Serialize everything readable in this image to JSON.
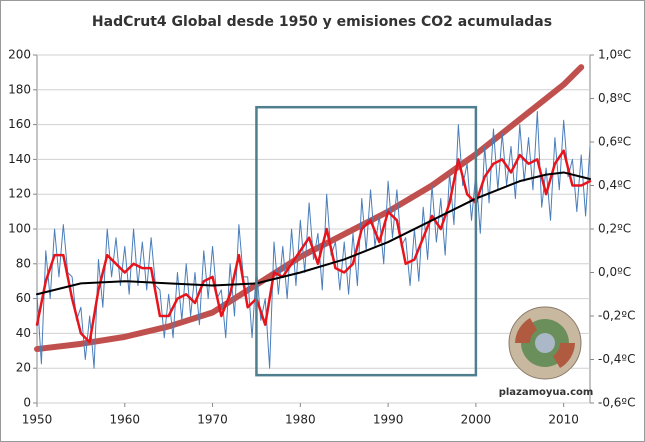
{
  "chart_data": {
    "type": "line",
    "title": "HadCrut4 Global desde 1950 y emisiones CO2 acumuladas",
    "watermark": "plazamoyua.com",
    "xlim": [
      1950,
      2013
    ],
    "xticks": [
      1950,
      1960,
      1970,
      1980,
      1990,
      2000,
      2010
    ],
    "ylim": [
      0,
      200
    ],
    "yticks": [
      0,
      20,
      40,
      60,
      80,
      100,
      120,
      140,
      160,
      180,
      200
    ],
    "y2lim": [
      -0.6,
      1.0
    ],
    "y2ticks": [
      {
        "value": -0.6,
        "label": "-0,6ºC"
      },
      {
        "value": -0.4,
        "label": "-0,4ºC"
      },
      {
        "value": -0.2,
        "label": "-0,2ºC"
      },
      {
        "value": 0.0,
        "label": "0,0ºC"
      },
      {
        "value": 0.2,
        "label": "0,2ºC"
      },
      {
        "value": 0.4,
        "label": "0,4ºC"
      },
      {
        "value": 0.6,
        "label": "0,6ºC"
      },
      {
        "value": 0.8,
        "label": "0,8ºC"
      },
      {
        "value": 1.0,
        "label": "1,0ºC"
      }
    ],
    "grid": true,
    "annotation_box": {
      "xlim": [
        1975,
        2000
      ],
      "ylim": [
        16,
        170
      ],
      "color": "#4f7f8f"
    },
    "series": [
      {
        "color": "#c0504d",
        "width": 6,
        "axis": "y",
        "x": [
          1950,
          1955,
          1960,
          1965,
          1970,
          1975,
          1980,
          1985,
          1990,
          1995,
          2000,
          2005,
          2010,
          2012
        ],
        "values": [
          31,
          34,
          38,
          44,
          52,
          68,
          84,
          97,
          110,
          125,
          143,
          163,
          183,
          193
        ]
      },
      {
        "color": "#4a7ebb",
        "width": 1,
        "axis": "y2",
        "x": [
          1950,
          1950.5,
          1951,
          1951.5,
          1952,
          1952.5,
          1953,
          1953.5,
          1954,
          1954.5,
          1955,
          1955.5,
          1956,
          1956.5,
          1957,
          1957.5,
          1958,
          1958.5,
          1959,
          1959.5,
          1960,
          1960.5,
          1961,
          1961.5,
          1962,
          1962.5,
          1963,
          1963.5,
          1964,
          1964.5,
          1965,
          1965.5,
          1966,
          1966.5,
          1967,
          1967.5,
          1968,
          1968.5,
          1969,
          1969.5,
          1970,
          1970.5,
          1971,
          1971.5,
          1972,
          1972.5,
          1973,
          1973.5,
          1974,
          1974.5,
          1975,
          1975.5,
          1976,
          1976.5,
          1977,
          1977.5,
          1978,
          1978.5,
          1979,
          1979.5,
          1980,
          1980.5,
          1981,
          1981.5,
          1982,
          1982.5,
          1983,
          1983.5,
          1984,
          1984.5,
          1985,
          1985.5,
          1986,
          1986.5,
          1987,
          1987.5,
          1988,
          1988.5,
          1989,
          1989.5,
          1990,
          1990.5,
          1991,
          1991.5,
          1992,
          1992.5,
          1993,
          1993.5,
          1994,
          1994.5,
          1995,
          1995.5,
          1996,
          1996.5,
          1997,
          1997.5,
          1998,
          1998.5,
          1999,
          1999.5,
          2000,
          2000.5,
          2001,
          2001.5,
          2002,
          2002.5,
          2003,
          2003.5,
          2004,
          2004.5,
          2005,
          2005.5,
          2006,
          2006.5,
          2007,
          2007.5,
          2008,
          2008.5,
          2009,
          2009.5,
          2010,
          2010.5,
          2011,
          2011.5,
          2012,
          2012.5,
          2013
        ],
        "values": [
          -0.1,
          -0.42,
          0.1,
          -0.12,
          0.2,
          -0.02,
          0.22,
          0.0,
          -0.02,
          -0.22,
          -0.16,
          -0.4,
          -0.2,
          -0.44,
          0.06,
          -0.16,
          0.2,
          -0.02,
          0.16,
          -0.06,
          0.12,
          -0.1,
          0.2,
          -0.06,
          0.14,
          -0.08,
          0.16,
          -0.06,
          -0.08,
          -0.3,
          -0.1,
          -0.3,
          0.0,
          -0.22,
          0.04,
          -0.2,
          0.0,
          -0.24,
          0.1,
          -0.12,
          0.12,
          -0.12,
          -0.08,
          -0.3,
          0.04,
          -0.2,
          0.22,
          -0.02,
          -0.02,
          -0.3,
          0.02,
          -0.22,
          -0.12,
          -0.44,
          0.14,
          -0.1,
          0.12,
          -0.12,
          0.2,
          -0.06,
          0.24,
          0.0,
          0.32,
          0.06,
          0.18,
          -0.08,
          0.36,
          0.08,
          0.14,
          -0.08,
          0.14,
          -0.1,
          0.18,
          -0.06,
          0.34,
          0.1,
          0.38,
          0.12,
          0.26,
          0.04,
          0.42,
          0.16,
          0.38,
          0.12,
          0.16,
          -0.06,
          0.2,
          -0.04,
          0.3,
          0.06,
          0.4,
          0.14,
          0.34,
          0.08,
          0.46,
          0.22,
          0.68,
          0.4,
          0.5,
          0.24,
          0.46,
          0.18,
          0.58,
          0.32,
          0.66,
          0.38,
          0.64,
          0.4,
          0.58,
          0.34,
          0.68,
          0.42,
          0.62,
          0.38,
          0.74,
          0.3,
          0.48,
          0.24,
          0.62,
          0.38,
          0.7,
          0.44,
          0.52,
          0.28,
          0.54,
          0.26,
          0.58
        ]
      },
      {
        "color": "#e8141b",
        "width": 2.5,
        "axis": "y2",
        "x": [
          1950,
          1951,
          1952,
          1953,
          1954,
          1955,
          1956,
          1957,
          1958,
          1959,
          1960,
          1961,
          1962,
          1963,
          1964,
          1965,
          1966,
          1967,
          1968,
          1969,
          1970,
          1971,
          1972,
          1973,
          1974,
          1975,
          1976,
          1977,
          1978,
          1979,
          1980,
          1981,
          1982,
          1983,
          1984,
          1985,
          1986,
          1987,
          1988,
          1989,
          1990,
          1991,
          1992,
          1993,
          1994,
          1995,
          1996,
          1997,
          1998,
          1999,
          2000,
          2001,
          2002,
          2003,
          2004,
          2005,
          2006,
          2007,
          2008,
          2009,
          2010,
          2011,
          2012,
          2013
        ],
        "values": [
          -0.24,
          -0.04,
          0.08,
          0.08,
          -0.12,
          -0.28,
          -0.32,
          -0.08,
          0.08,
          0.04,
          0.0,
          0.04,
          0.02,
          0.02,
          -0.2,
          -0.2,
          -0.12,
          -0.1,
          -0.14,
          -0.04,
          -0.02,
          -0.2,
          -0.1,
          0.08,
          -0.16,
          -0.12,
          -0.24,
          0.0,
          -0.02,
          0.04,
          0.1,
          0.16,
          0.04,
          0.2,
          0.02,
          0.0,
          0.04,
          0.2,
          0.24,
          0.14,
          0.28,
          0.24,
          0.04,
          0.06,
          0.16,
          0.26,
          0.2,
          0.32,
          0.52,
          0.36,
          0.32,
          0.44,
          0.5,
          0.52,
          0.46,
          0.54,
          0.5,
          0.52,
          0.36,
          0.5,
          0.56,
          0.4,
          0.4,
          0.42
        ]
      },
      {
        "color": "#000000",
        "width": 2,
        "axis": "y2",
        "x": [
          1950,
          1955,
          1960,
          1965,
          1970,
          1975,
          1980,
          1985,
          1990,
          1995,
          2000,
          2005,
          2008,
          2010,
          2013
        ],
        "values": [
          -0.1,
          -0.05,
          -0.04,
          -0.05,
          -0.06,
          -0.05,
          0.0,
          0.06,
          0.14,
          0.24,
          0.34,
          0.42,
          0.45,
          0.46,
          0.43
        ]
      }
    ]
  }
}
